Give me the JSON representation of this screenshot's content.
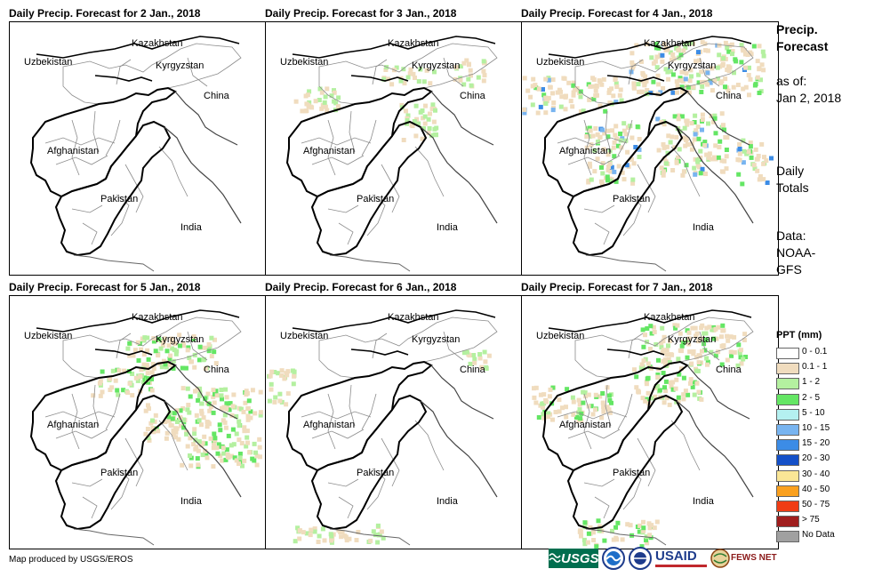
{
  "panels": [
    {
      "title": "Daily Precip. Forecast for 2 Jan., 2018",
      "intensity": 0
    },
    {
      "title": "Daily Precip. Forecast for 3 Jan., 2018",
      "intensity": 1
    },
    {
      "title": "Daily Precip. Forecast for 4 Jan., 2018",
      "intensity": 3
    },
    {
      "title": "Daily Precip. Forecast for 5 Jan., 2018",
      "intensity": 2
    },
    {
      "title": "Daily Precip. Forecast for 6 Jan., 2018",
      "intensity": 1
    },
    {
      "title": "Daily Precip. Forecast for 7 Jan., 2018",
      "intensity": 2
    }
  ],
  "map_labels": {
    "kazakhstan": "Kazakhstan",
    "uzbekistan": "Uzbekistan",
    "kyrgyzstan": "Kyrgyzstan",
    "china": "China",
    "afghanistan": "Afghanistan",
    "pakistan": "Pakistan",
    "india": "India"
  },
  "side_info": {
    "title_line1": "Precip.",
    "title_line2": "Forecast",
    "asof_line1": "as of:",
    "asof_line2": "Jan 2, 2018",
    "totals_line1": "Daily",
    "totals_line2": "Totals",
    "data_line1": "Data:",
    "data_line2": "NOAA-",
    "data_line3": "GFS"
  },
  "legend": {
    "title": "PPT (mm)",
    "items": [
      {
        "label": "0 - 0.1",
        "color": "#ffffff"
      },
      {
        "label": "0.1 - 1",
        "color": "#f0dcbe"
      },
      {
        "label": "1 - 2",
        "color": "#b4f0a0"
      },
      {
        "label": "2 - 5",
        "color": "#64e664"
      },
      {
        "label": "5 - 10",
        "color": "#b4f0f0"
      },
      {
        "label": "10 - 15",
        "color": "#78b4f0"
      },
      {
        "label": "15 - 20",
        "color": "#3c8ce6"
      },
      {
        "label": "20 - 30",
        "color": "#1450c8"
      },
      {
        "label": "30 - 40",
        "color": "#fae696"
      },
      {
        "label": "40 - 50",
        "color": "#faa01e"
      },
      {
        "label": "50 - 75",
        "color": "#f03c14"
      },
      {
        "label": "> 75",
        "color": "#a01e1e"
      },
      {
        "label": "No Data",
        "color": "#a0a0a0"
      }
    ]
  },
  "credit": "Map produced by USGS/EROS",
  "logos": {
    "usgs": "USGS",
    "usaid": "USAID",
    "fewsnet": "FEWS NET"
  }
}
